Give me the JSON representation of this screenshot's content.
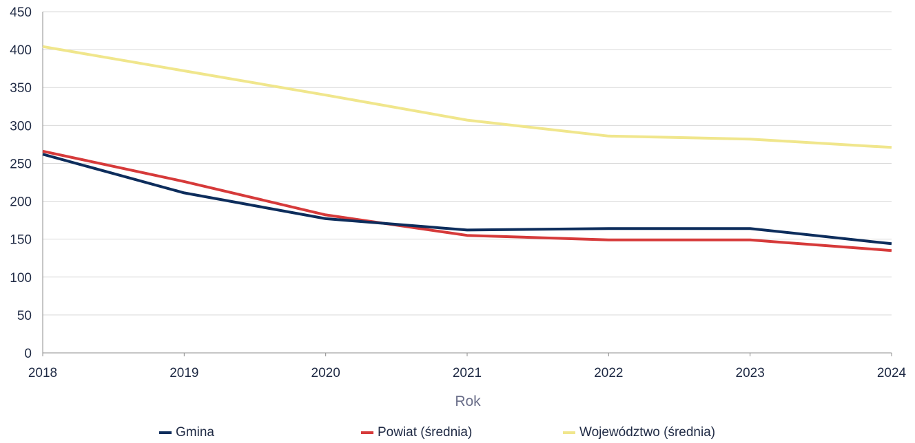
{
  "chart_data": {
    "type": "line",
    "title": "",
    "xlabel": "Rok",
    "ylabel": "",
    "x": [
      2018,
      2019,
      2020,
      2021,
      2022,
      2023,
      2024
    ],
    "ylim": [
      0,
      450
    ],
    "yticks": [
      0,
      50,
      100,
      150,
      200,
      250,
      300,
      350,
      400,
      450
    ],
    "grid": true,
    "legend_position": "bottom",
    "series": [
      {
        "name": "Gmina",
        "color": "#0d2d5c",
        "values": [
          262,
          211,
          177,
          162,
          164,
          164,
          144
        ]
      },
      {
        "name": "Powiat (średnia)",
        "color": "#d63a3a",
        "values": [
          266,
          226,
          182,
          155,
          149,
          149,
          135
        ]
      },
      {
        "name": "Województwo (średnia)",
        "color": "#f0e68c",
        "values": [
          404,
          372,
          340,
          307,
          286,
          282,
          271
        ]
      }
    ]
  }
}
